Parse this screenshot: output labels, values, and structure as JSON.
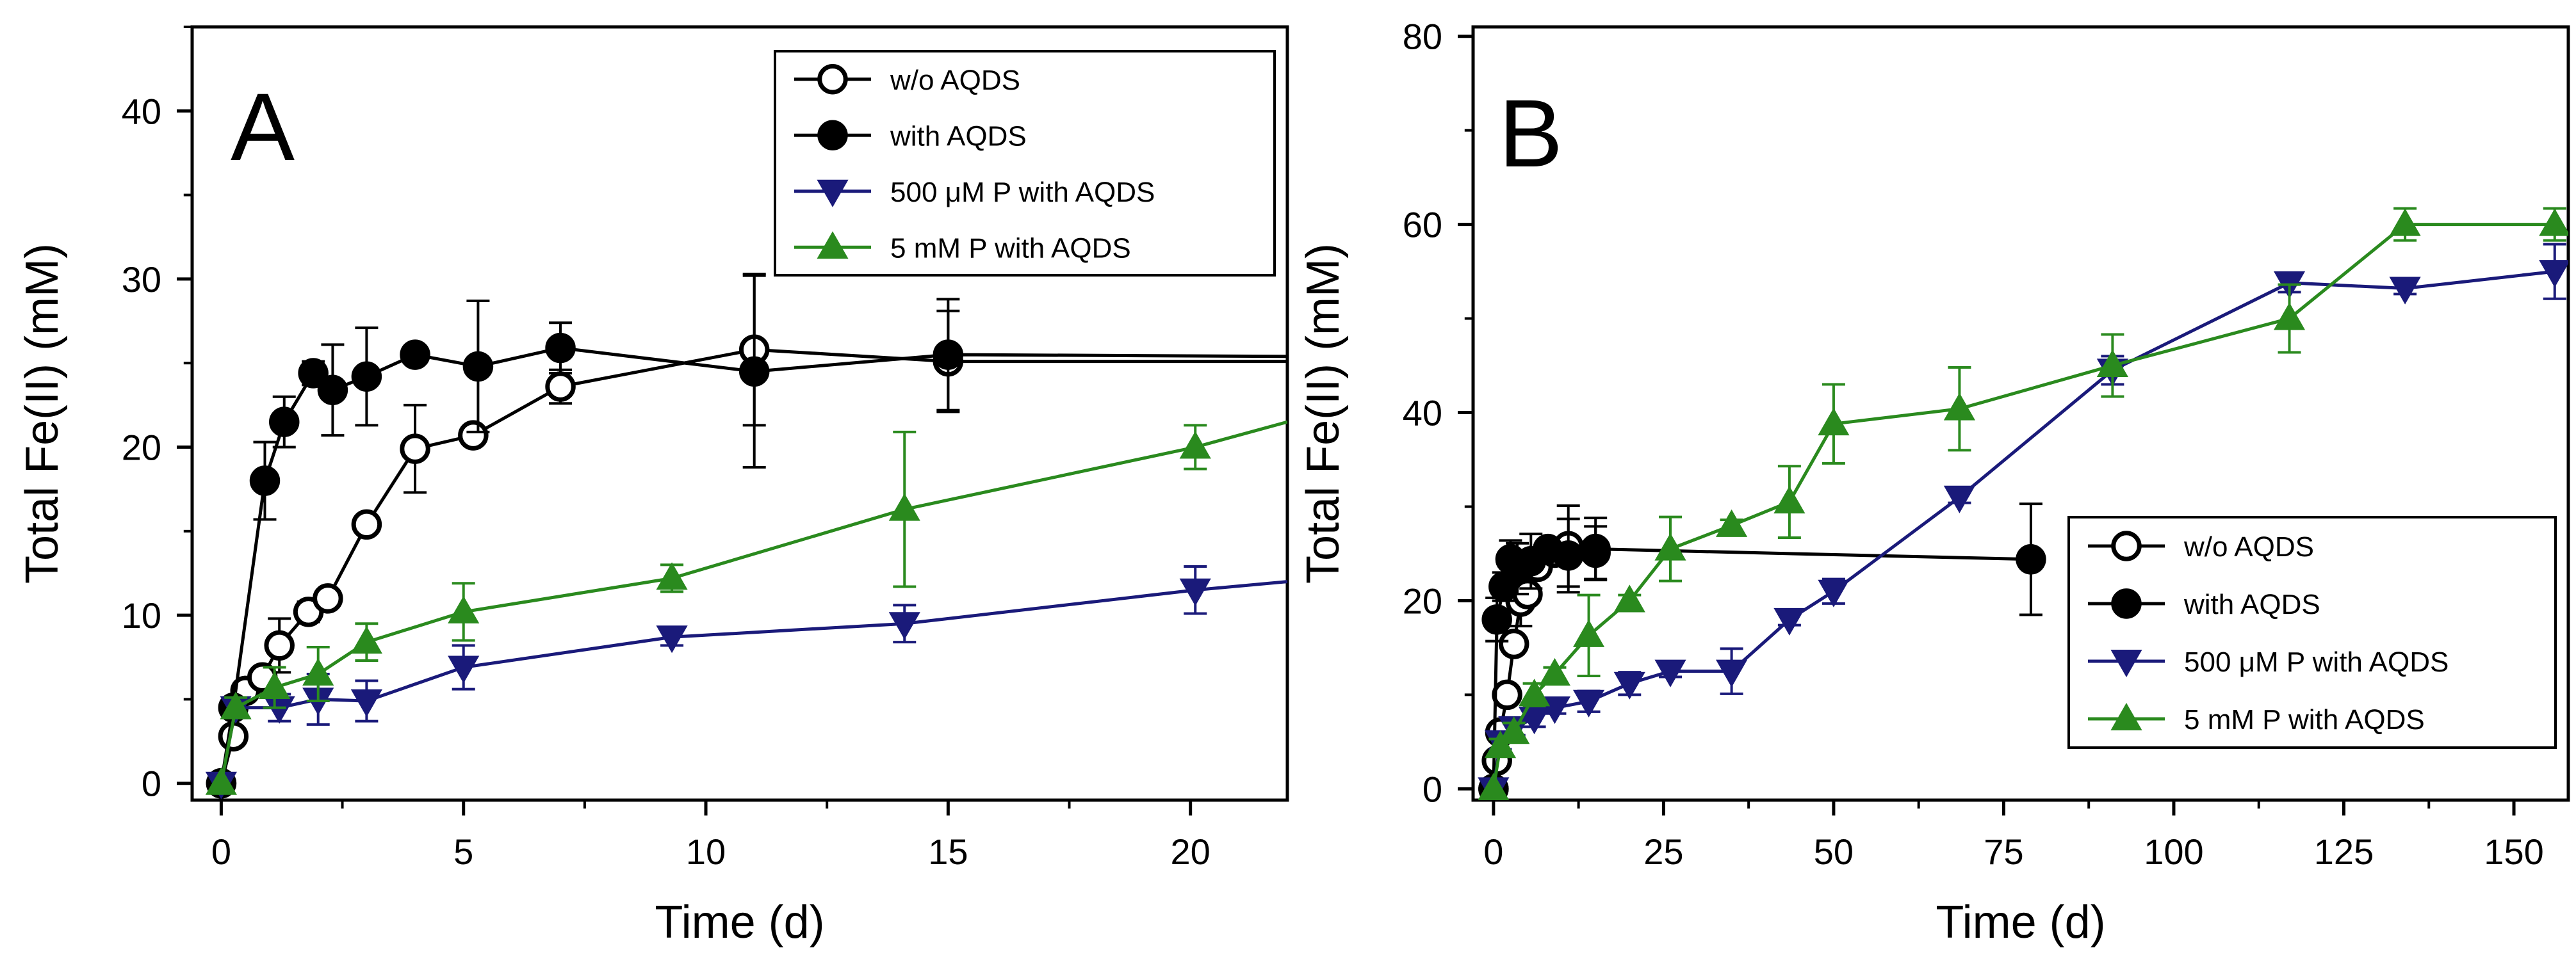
{
  "chart_data": [
    {
      "type": "line",
      "panel_label": "A",
      "xlabel": "Time (d)",
      "ylabel": "Total Fe(II) (mM)",
      "xlim": [
        -0.6,
        22
      ],
      "ylim": [
        -1,
        45
      ],
      "xticks": [
        0,
        5,
        10,
        15,
        20
      ],
      "yticks": [
        0,
        10,
        20,
        30,
        40
      ],
      "legend_position": "top-right",
      "series": [
        {
          "name": "w/o AQDS",
          "color": "#000000",
          "marker": "circle-open",
          "x": [
            0,
            0.25,
            0.5,
            0.85,
            1.2,
            1.8,
            2.2,
            3,
            4,
            5.2,
            7,
            11,
            15,
            22
          ],
          "y": [
            0,
            2.8,
            5.5,
            6.3,
            8.2,
            10.2,
            11,
            15.4,
            19.9,
            20.7,
            23.6,
            25.8,
            25.1,
            25.1
          ],
          "err": [
            0,
            0.5,
            0.5,
            0.5,
            1.6,
            0.6,
            0.5,
            0.5,
            2.6,
            0.5,
            1.0,
            4.5,
            3.0,
            0
          ]
        },
        {
          "name": "with AQDS",
          "color": "#000000",
          "marker": "circle-filled",
          "x": [
            0,
            0.25,
            0.9,
            1.3,
            1.9,
            2.3,
            3,
            4,
            5.3,
            7,
            11,
            15,
            22
          ],
          "y": [
            0,
            4.5,
            18,
            21.5,
            24.4,
            23.4,
            24.2,
            25.5,
            24.8,
            25.9,
            24.5,
            25.5,
            25.4
          ],
          "err": [
            0,
            0.5,
            2.3,
            1.5,
            0.7,
            2.7,
            2.9,
            0.5,
            3.9,
            1.5,
            5.7,
            3.3,
            0
          ]
        },
        {
          "name": "500 μM P with AQDS",
          "color": "#1a1a7a",
          "marker": "triangle-down",
          "x": [
            0,
            0.3,
            1.2,
            2,
            3,
            5,
            9.3,
            14.1,
            20.1,
            22
          ],
          "y": [
            0,
            4.5,
            4.5,
            5,
            4.9,
            6.9,
            8.7,
            9.5,
            11.5,
            12
          ],
          "err": [
            0,
            0.5,
            0.8,
            1.5,
            1.2,
            1.3,
            0.5,
            1.1,
            1.4,
            0
          ]
        },
        {
          "name": "5 mM P with AQDS",
          "color": "#2a8a1e",
          "marker": "triangle-up",
          "x": [
            0,
            0.3,
            1.1,
            2,
            3,
            5,
            9.3,
            14.1,
            20.1,
            22
          ],
          "y": [
            0,
            4.5,
            5.7,
            6.5,
            8.4,
            10.2,
            12.2,
            16.3,
            20,
            21.5
          ],
          "err": [
            0,
            0.6,
            1.2,
            1.6,
            1.1,
            1.7,
            0.8,
            4.6,
            1.3,
            0
          ]
        }
      ]
    },
    {
      "type": "line",
      "panel_label": "B",
      "xlabel": "Time (d)",
      "ylabel": "Total Fe(II) (mM)",
      "xlim": [
        -3,
        158
      ],
      "ylim": [
        -1.2,
        81
      ],
      "xticks": [
        0,
        25,
        50,
        75,
        100,
        125,
        150
      ],
      "yticks": [
        0,
        20,
        40,
        60,
        80
      ],
      "legend_position": "bottom-right",
      "series": [
        {
          "name": "w/o AQDS",
          "color": "#000000",
          "marker": "circle-open",
          "x": [
            0,
            0.5,
            1,
            2,
            3,
            4,
            5,
            6.5,
            9,
            11,
            15
          ],
          "y": [
            0,
            3,
            6,
            10,
            15.4,
            19.9,
            20.7,
            23.6,
            25.1,
            25.8,
            25.1
          ],
          "err": [
            0,
            0.6,
            0.6,
            0.6,
            0.6,
            2.6,
            0.6,
            1.0,
            0.8,
            4.3,
            2.8
          ]
        },
        {
          "name": "with AQDS",
          "color": "#000000",
          "marker": "circle-filled",
          "x": [
            0,
            0.5,
            1.5,
            2.5,
            3.5,
            5.5,
            8,
            11,
            15,
            79
          ],
          "y": [
            0,
            18,
            21.5,
            24.4,
            23.4,
            24.2,
            25.5,
            24.8,
            25.5,
            24.4
          ],
          "err": [
            0,
            2.3,
            1.5,
            2.0,
            2.7,
            2.9,
            0.8,
            3.9,
            3.3,
            5.9
          ]
        },
        {
          "name": "500 μM P with AQDS",
          "color": "#1a1a7a",
          "marker": "triangle-down",
          "x": [
            0,
            1,
            3,
            6,
            9,
            14,
            20,
            26,
            35,
            43.5,
            50,
            68.5,
            91,
            117,
            134,
            156
          ],
          "y": [
            0,
            5,
            6.5,
            7.5,
            8.6,
            9.3,
            11.2,
            12.5,
            12.5,
            18,
            21,
            31,
            44.5,
            53.8,
            53.2,
            55
          ],
          "err": [
            0,
            0.8,
            0.8,
            0.9,
            0.6,
            1.1,
            1.2,
            0.6,
            2.4,
            0.6,
            1.3,
            0.6,
            1.5,
            1.0,
            0.6,
            2.9
          ]
        },
        {
          "name": "5 mM P with AQDS",
          "color": "#2a8a1e",
          "marker": "triangle-up",
          "x": [
            0,
            1,
            3,
            6,
            9,
            14,
            20,
            26,
            35,
            43.5,
            50,
            68.5,
            91,
            117,
            134,
            156
          ],
          "y": [
            0,
            4.5,
            6,
            10,
            12.2,
            16.3,
            20,
            25.5,
            28,
            30.5,
            38.8,
            40.4,
            45,
            50,
            60,
            60
          ],
          "err": [
            0,
            0.8,
            1.0,
            1.2,
            0.7,
            4.3,
            0.6,
            3.4,
            0.6,
            3.8,
            4.2,
            4.4,
            3.3,
            3.6,
            1.7,
            1.7
          ]
        }
      ]
    }
  ]
}
